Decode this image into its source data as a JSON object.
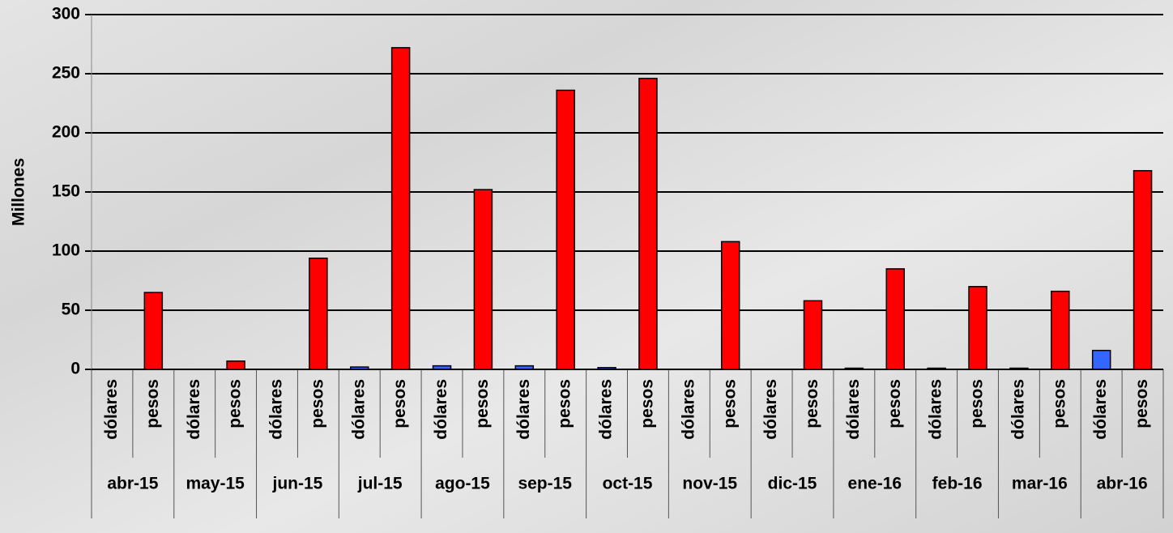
{
  "chart_data": {
    "type": "bar",
    "y_label": "Millones",
    "categories": [
      "abr-15",
      "may-15",
      "jun-15",
      "jul-15",
      "ago-15",
      "sep-15",
      "oct-15",
      "nov-15",
      "dic-15",
      "ene-16",
      "feb-16",
      "mar-16",
      "abr-16"
    ],
    "series": [
      {
        "name": "dólares",
        "color": "#3366ff",
        "values": [
          0,
          0,
          0,
          2,
          3,
          3,
          1.5,
          0,
          0,
          1,
          1,
          1,
          16
        ]
      },
      {
        "name": "pesos",
        "color": "#ff0000",
        "values": [
          65,
          7,
          94,
          272,
          152,
          236,
          246,
          108,
          58,
          85,
          70,
          66,
          168
        ]
      }
    ],
    "ylim": [
      0,
      300
    ],
    "yticks": [
      0,
      50,
      100,
      150,
      200,
      250,
      300
    ],
    "grid": true
  }
}
